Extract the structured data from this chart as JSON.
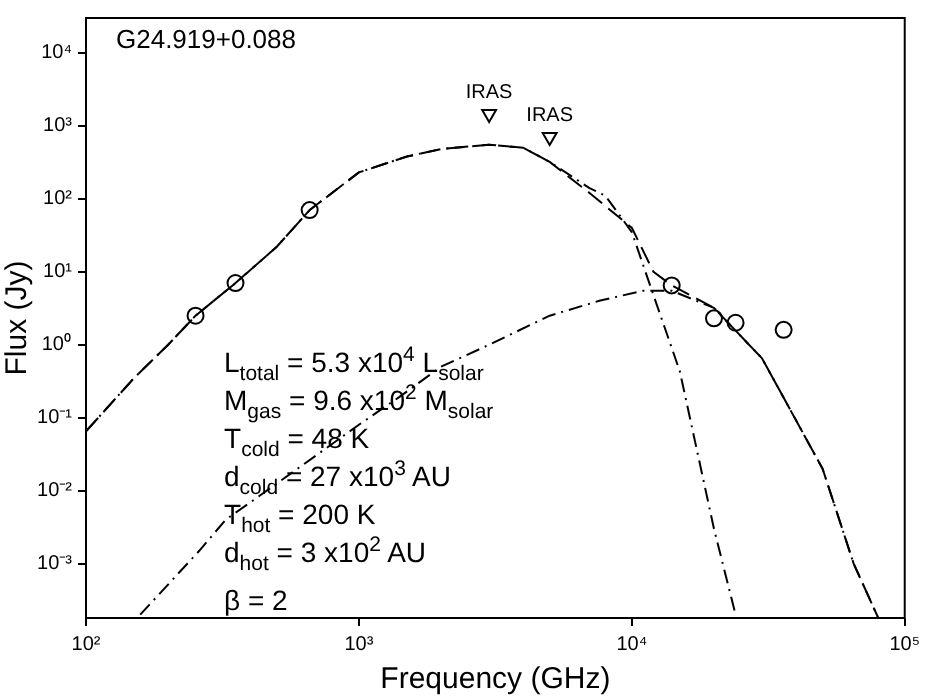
{
  "chart_data": {
    "type": "line",
    "xlabel": "Frequency (GHz)",
    "ylabel": "Flux (Jy)",
    "log": "xy",
    "xlim": [
      100,
      100000
    ],
    "ylim": [
      0.00018,
      30000
    ],
    "xticks": [
      {
        "value": 100,
        "label": "10²"
      },
      {
        "value": 1000,
        "label": "10³"
      },
      {
        "value": 10000,
        "label": "10⁴"
      },
      {
        "value": 100000,
        "label": "10⁵"
      }
    ],
    "yticks": [
      {
        "value": 0.001,
        "label": "10⁻³"
      },
      {
        "value": 0.01,
        "label": "10⁻²"
      },
      {
        "value": 0.1,
        "label": "10⁻¹"
      },
      {
        "value": 1,
        "label": "10⁰"
      },
      {
        "value": 10,
        "label": "10¹"
      },
      {
        "value": 100,
        "label": "10²"
      },
      {
        "value": 1000,
        "label": "10³"
      },
      {
        "value": 10000,
        "label": "10⁴"
      }
    ],
    "grid": false,
    "legend": false,
    "series": [
      {
        "color": "#000000",
        "line_style": "dashed",
        "marker": "none",
        "x": [
          100,
          150,
          200,
          252,
          353,
          500,
          660,
          1000,
          1500,
          2000,
          3000,
          4000,
          5000,
          7000,
          10000,
          12000,
          14000,
          20000,
          30000,
          50000,
          65000,
          80000
        ],
        "values": [
          0.065,
          0.35,
          1.0,
          2.5,
          7,
          22,
          70,
          230,
          380,
          480,
          550,
          500,
          320,
          120,
          40,
          10,
          6.5,
          3.2,
          0.65,
          0.02,
          0.001,
          0.00018
        ]
      },
      {
        "color": "#000000",
        "line_style": "dashdot",
        "marker": "none",
        "x": [
          100,
          150,
          200,
          252,
          353,
          500,
          660,
          1000,
          1500,
          2000,
          3000,
          4000,
          5000,
          7000,
          8000,
          10000,
          12000,
          15000,
          20000,
          24000
        ],
        "values": [
          0.065,
          0.35,
          1.0,
          2.5,
          7,
          22,
          70,
          230,
          380,
          480,
          550,
          500,
          320,
          140,
          110,
          35,
          4.8,
          0.43,
          0.003,
          0.0002
        ]
      },
      {
        "color": "#000000",
        "line_style": "dashdot",
        "marker": "none",
        "x": [
          158,
          260,
          325,
          500,
          1000,
          1400,
          2000,
          3000,
          5000,
          7600,
          11000,
          14000,
          20000,
          30000,
          50000,
          65000,
          80000
        ],
        "values": [
          0.0002,
          0.0015,
          0.004,
          0.0125,
          0.08,
          0.19,
          0.5,
          1.0,
          2.5,
          4,
          5.5,
          5.5,
          3.2,
          0.65,
          0.02,
          0.001,
          0.00018
        ]
      },
      {
        "type": "scatter",
        "color": "#000000",
        "marker": "circle",
        "x": [
          252,
          353,
          660,
          14000,
          20000,
          24000,
          36000
        ],
        "values": [
          2.5,
          7,
          70,
          6.5,
          2.3,
          2.0,
          1.6
        ]
      },
      {
        "type": "scatter",
        "color": "#000000",
        "marker": "triangle",
        "x": [
          3000,
          5000
        ],
        "values": [
          1450,
          700
        ]
      }
    ],
    "annotations": [
      "G24.919+0.088",
      {
        "text": "IRAS",
        "x": 3000,
        "y": 1450
      },
      {
        "text": "IRAS",
        "x": 5000,
        "y": 700
      },
      "L$_{total}$ = 5.3 x10$^{4}$ L$_{solar}$",
      "M$_{gas}$ = 9.6 x10$^{2}$ M$_{solar}$",
      "T$_{cold}$ = 48 K",
      "d$_{cold}$ = 27 x10$^{3}$ AU",
      "T$_{hot}$ = 200 K",
      "d$_{hot}$ = 3 x10$^{2}$ AU",
      "β = 2"
    ]
  }
}
